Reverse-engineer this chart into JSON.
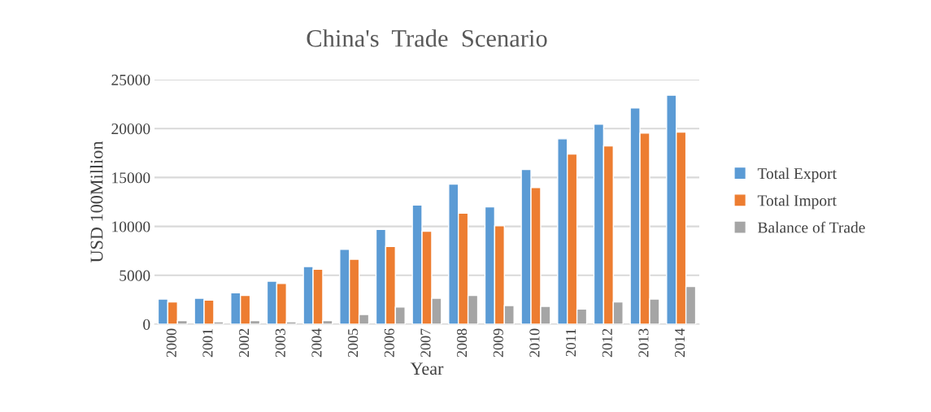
{
  "chart_data": {
    "type": "bar",
    "title": "China's  Trade  Scenario",
    "xlabel": "Year",
    "ylabel": "USD 100Million",
    "categories": [
      "2000",
      "2001",
      "2002",
      "2003",
      "2004",
      "2005",
      "2006",
      "2007",
      "2008",
      "2009",
      "2010",
      "2011",
      "2012",
      "2013",
      "2014"
    ],
    "series": [
      {
        "name": "Total Export",
        "color": "#5b9bd5",
        "values": [
          2580,
          2660,
          3210,
          4400,
          5900,
          7650,
          9700,
          12190,
          14320,
          11990,
          15820,
          18950,
          20440,
          22100,
          23410
        ]
      },
      {
        "name": "Total Import",
        "color": "#ed7d31",
        "values": [
          2270,
          2470,
          2940,
          4160,
          5620,
          6650,
          7950,
          9500,
          11360,
          10060,
          13960,
          17400,
          18230,
          19530,
          19640
        ]
      },
      {
        "name": "Balance of Trade",
        "color": "#a5a5a5",
        "values": [
          360,
          250,
          360,
          250,
          360,
          1000,
          1750,
          2660,
          2940,
          1910,
          1830,
          1550,
          2270,
          2580,
          3850
        ]
      }
    ],
    "ylim": [
      0,
      25000
    ],
    "yticks": [
      0,
      5000,
      10000,
      15000,
      20000,
      25000
    ],
    "grid": "y",
    "legend": "right"
  }
}
